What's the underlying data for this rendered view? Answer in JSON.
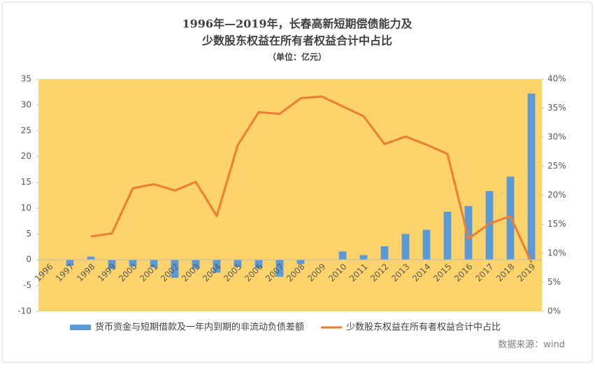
{
  "chart_data": {
    "type": "bar_line",
    "title": "1996年—2019年，长春高新短期偿债能力及",
    "subtitle": "少数股东权益在所有者权益合计中占比",
    "unit": "（单位：亿元）",
    "source": "数据来源：wind",
    "categories": [
      "1996",
      "1997",
      "1998",
      "1999",
      "2000",
      "2001",
      "2002",
      "2003",
      "2004",
      "2005",
      "2006",
      "2007",
      "2008",
      "2009",
      "2010",
      "2011",
      "2012",
      "2013",
      "2014",
      "2015",
      "2016",
      "2017",
      "2018",
      "2019"
    ],
    "series": [
      {
        "name": "货币资金与短期借款及一年内到期的非流动负债差额",
        "color": "#5b9bd5",
        "kind": "bar",
        "values": [
          0,
          -1.2,
          0.6,
          -1.8,
          -1.3,
          -1.5,
          -3.5,
          -1.8,
          -2.5,
          -1.4,
          -1.6,
          -3.3,
          -0.8,
          0,
          1.6,
          0.9,
          2.6,
          5.0,
          5.8,
          9.3,
          10.4,
          13.3,
          16.1,
          32.2
        ]
      },
      {
        "name": "少数股东权益在所有者权益合计中占比",
        "color": "#ed7d31",
        "kind": "line",
        "axis": "y2",
        "values": [
          null,
          null,
          12.9,
          13.4,
          21.2,
          21.9,
          20.8,
          22.3,
          16.4,
          28.6,
          34.3,
          34.0,
          36.7,
          37.0,
          35.3,
          33.6,
          28.8,
          30.1,
          28.7,
          27.1,
          12.5,
          15.1,
          16.4,
          8.4
        ]
      }
    ],
    "ylim": [
      -10,
      35
    ],
    "yticks": [
      -10,
      -5,
      0,
      5,
      10,
      15,
      20,
      25,
      30,
      35
    ],
    "y2lim": [
      0,
      40
    ],
    "y2ticks": [
      {
        "value": 0,
        "label": "0%"
      },
      {
        "value": 5,
        "label": "5%"
      },
      {
        "value": 10,
        "label": "10%"
      },
      {
        "value": 15,
        "label": "15%"
      },
      {
        "value": 20,
        "label": "20%"
      },
      {
        "value": 25,
        "label": "25%"
      },
      {
        "value": 30,
        "label": "30%"
      },
      {
        "value": 35,
        "label": "35%"
      },
      {
        "value": 40,
        "label": "40%"
      }
    ],
    "plot_color": "#fdd46b"
  }
}
